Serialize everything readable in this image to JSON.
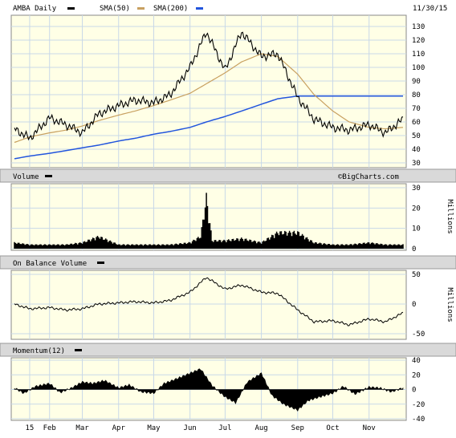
{
  "header": {
    "symbol_label": "AMBA Daily",
    "sma50_label": "SMA(50)",
    "sma200_label": "SMA(200)",
    "date": "11/30/15"
  },
  "watermark": "©BigCharts.com",
  "colors": {
    "price": "#000000",
    "sma50": "#c8a060",
    "sma200": "#2255dd",
    "panel_bg": "#ffffe6",
    "grid": "#c8d8e8",
    "band": "#d9d9d9"
  },
  "x_axis_labels": [
    "15",
    "Feb",
    "Mar",
    "Apr",
    "May",
    "Jun",
    "Jul",
    "Aug",
    "Sep",
    "Oct",
    "Nov"
  ],
  "panels": {
    "volume": {
      "title": "Volume",
      "unit": "Millions"
    },
    "obv": {
      "title": "On Balance Volume",
      "unit": "Millions"
    },
    "momentum": {
      "title": "Momentum(12)"
    }
  },
  "chart_data": [
    {
      "type": "line",
      "name": "price",
      "ylim": [
        30,
        130
      ],
      "y_ticks": [
        "130",
        "120",
        "110",
        "100",
        "90",
        "80",
        "70",
        "60",
        "50",
        "40",
        "30"
      ],
      "x": [
        "Jan 2",
        "Jan 15",
        "Feb 1",
        "Feb 15",
        "Mar 1",
        "Mar 15",
        "Apr 1",
        "Apr 15",
        "May 1",
        "May 15",
        "Jun 1",
        "Jun 15",
        "Jul 1",
        "Jul 15",
        "Aug 1",
        "Aug 15",
        "Sep 1",
        "Sep 15",
        "Oct 1",
        "Oct 15",
        "Nov 1",
        "Nov 15",
        "Nov 30"
      ],
      "series": [
        {
          "name": "AMBA Daily",
          "values": [
            55,
            48,
            63,
            58,
            52,
            66,
            72,
            76,
            74,
            80,
            100,
            126,
            98,
            126,
            108,
            110,
            78,
            62,
            56,
            54,
            58,
            52,
            62
          ]
        },
        {
          "name": "SMA(50)",
          "values": [
            45,
            49,
            52,
            54,
            57,
            61,
            65,
            68,
            72,
            76,
            81,
            88,
            96,
            104,
            110,
            108,
            95,
            80,
            68,
            60,
            56,
            55,
            56
          ]
        },
        {
          "name": "SMA(200)",
          "values": [
            33,
            35,
            37,
            39,
            41,
            43,
            46,
            48,
            51,
            53,
            56,
            60,
            64,
            68,
            73,
            77,
            79,
            79,
            79,
            79,
            79,
            79,
            79
          ]
        }
      ]
    },
    {
      "type": "bar",
      "name": "volume",
      "ylim": [
        0,
        30
      ],
      "y_ticks": [
        "30",
        "20",
        "10",
        "0"
      ],
      "x": [
        "Jan 2",
        "Jan 15",
        "Feb 1",
        "Feb 15",
        "Mar 1",
        "Mar 15",
        "Apr 1",
        "Apr 15",
        "May 1",
        "May 15",
        "Jun 1",
        "Jun 10",
        "Jun 15",
        "Jun 20",
        "Jul 1",
        "Jul 15",
        "Aug 1",
        "Aug 15",
        "Sep 1",
        "Sep 15",
        "Oct 1",
        "Oct 15",
        "Nov 1",
        "Nov 15",
        "Nov 30"
      ],
      "values": [
        3,
        2,
        2,
        2,
        3,
        6,
        2,
        2,
        2,
        2,
        3,
        6,
        25,
        4,
        4,
        5,
        3,
        8,
        8,
        3,
        2,
        2,
        3,
        2,
        2
      ]
    },
    {
      "type": "line",
      "name": "on_balance_volume",
      "ylim": [
        -50,
        50
      ],
      "y_ticks": [
        "50",
        "0",
        "-50"
      ],
      "x": [
        "Jan 2",
        "Jan 15",
        "Feb 1",
        "Feb 15",
        "Mar 1",
        "Mar 15",
        "Apr 1",
        "Apr 15",
        "May 1",
        "May 15",
        "Jun 1",
        "Jun 15",
        "Jul 1",
        "Jul 15",
        "Aug 1",
        "Aug 15",
        "Sep 1",
        "Sep 15",
        "Oct 1",
        "Oct 15",
        "Nov 1",
        "Nov 15",
        "Nov 30"
      ],
      "values": [
        0,
        -8,
        -6,
        -10,
        -8,
        0,
        2,
        4,
        2,
        6,
        20,
        45,
        25,
        32,
        20,
        18,
        -10,
        -30,
        -28,
        -35,
        -25,
        -30,
        -15
      ]
    },
    {
      "type": "area",
      "name": "momentum",
      "ylim": [
        -40,
        40
      ],
      "y_ticks": [
        "40",
        "20",
        "0",
        "-20",
        "-40"
      ],
      "x": [
        "Jan 2",
        "Jan 10",
        "Jan 20",
        "Feb 1",
        "Feb 10",
        "Feb 20",
        "Mar 1",
        "Mar 10",
        "Mar 20",
        "Apr 1",
        "Apr 10",
        "Apr 20",
        "May 1",
        "May 10",
        "May 20",
        "Jun 1",
        "Jun 10",
        "Jun 20",
        "Jul 1",
        "Jul 10",
        "Jul 20",
        "Aug 1",
        "Aug 10",
        "Aug 20",
        "Sep 1",
        "Sep 10",
        "Sep 20",
        "Oct 1",
        "Oct 10",
        "Oct 20",
        "Nov 1",
        "Nov 10",
        "Nov 20",
        "Nov 30"
      ],
      "values": [
        2,
        -5,
        4,
        8,
        -4,
        2,
        10,
        8,
        12,
        2,
        6,
        -3,
        -5,
        8,
        14,
        22,
        28,
        5,
        -10,
        -18,
        10,
        22,
        -8,
        -20,
        -28,
        -15,
        -10,
        -5,
        4,
        -6,
        3,
        2,
        -3,
        2
      ]
    }
  ]
}
